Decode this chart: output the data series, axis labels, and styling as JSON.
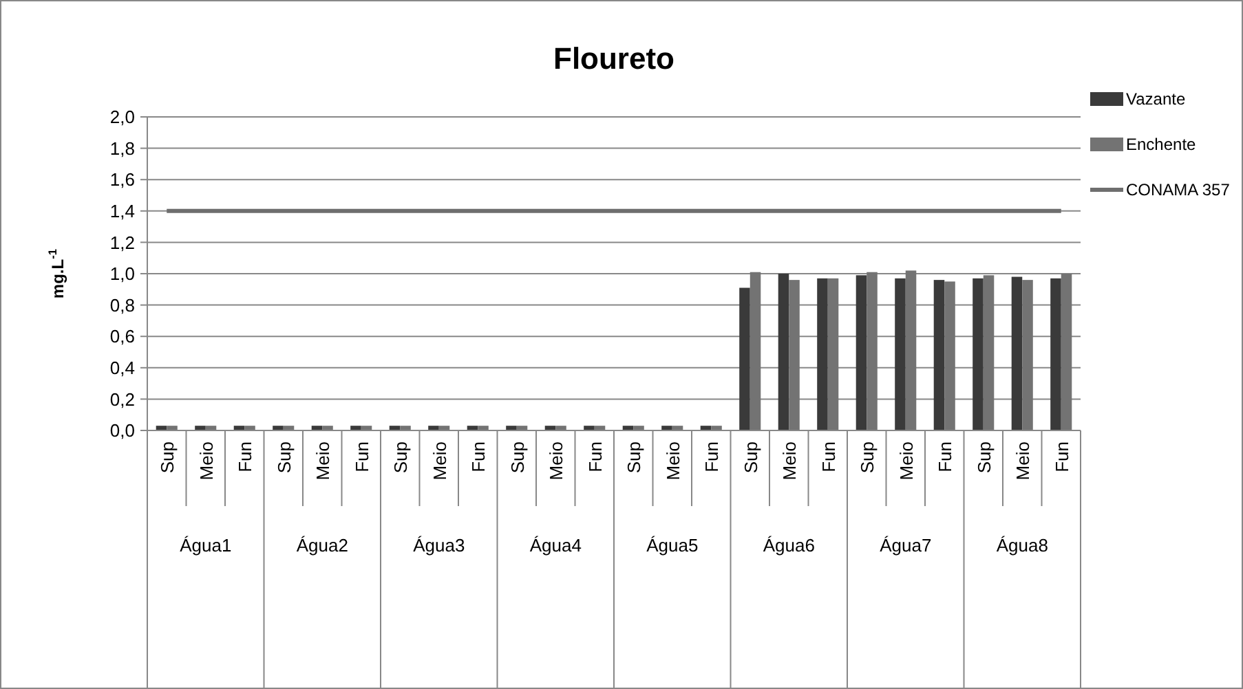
{
  "chart_data": {
    "type": "bar",
    "title": "Floureto",
    "ylabel": "mg.L$^{-1}$",
    "categories": [
      "Sup",
      "Meio",
      "Fun",
      "Sup",
      "Meio",
      "Fun",
      "Sup",
      "Meio",
      "Fun",
      "Sup",
      "Meio",
      "Fun",
      "Sup",
      "Meio",
      "Fun",
      "Sup",
      "Meio",
      "Fun",
      "Sup",
      "Meio",
      "Fun",
      "Sup",
      "Meio",
      "Fun"
    ],
    "annotations": [
      "Água1",
      "Água2",
      "Água3",
      "Água4",
      "Água5",
      "Água6",
      "Água7",
      "Água8"
    ],
    "series": [
      {
        "name": "Vazante",
        "color": "#3a3a3a",
        "values": [
          0.03,
          0.03,
          0.03,
          0.03,
          0.03,
          0.03,
          0.03,
          0.03,
          0.03,
          0.03,
          0.03,
          0.03,
          0.03,
          0.03,
          0.03,
          0.91,
          1.0,
          0.97,
          0.99,
          0.97,
          0.96,
          0.97,
          0.98,
          0.97
        ]
      },
      {
        "name": "Enchente",
        "color": "#737373",
        "values": [
          0.03,
          0.03,
          0.03,
          0.03,
          0.03,
          0.03,
          0.03,
          0.03,
          0.03,
          0.03,
          0.03,
          0.03,
          0.03,
          0.03,
          0.03,
          1.01,
          0.96,
          0.97,
          1.01,
          1.02,
          0.95,
          0.99,
          0.96,
          1.0
        ]
      },
      {
        "name": "CONAMA 357",
        "type": "line",
        "color": "#6e6e6e",
        "values": [
          1.4,
          1.4,
          1.4,
          1.4,
          1.4,
          1.4,
          1.4,
          1.4,
          1.4,
          1.4,
          1.4,
          1.4,
          1.4,
          1.4,
          1.4,
          1.4,
          1.4,
          1.4,
          1.4,
          1.4,
          1.4,
          1.4,
          1.4,
          1.4
        ]
      }
    ],
    "ylim": [
      0,
      2.0
    ],
    "yticks": [
      {
        "value": 0,
        "label": "0,0"
      },
      {
        "value": 0.2,
        "label": "0,2"
      },
      {
        "value": 0.4,
        "label": "0,4"
      },
      {
        "value": 0.6,
        "label": "0,6"
      },
      {
        "value": 0.8,
        "label": "0,8"
      },
      {
        "value": 1.0,
        "label": "1,0"
      },
      {
        "value": 1.2,
        "label": "1,2"
      },
      {
        "value": 1.4,
        "label": "1,4"
      },
      {
        "value": 1.6,
        "label": "1,6"
      },
      {
        "value": 1.8,
        "label": "1,8"
      },
      {
        "value": 2.0,
        "label": "2,0"
      }
    ],
    "grid": "y",
    "legend": "top right",
    "marker": "none",
    "line_style": "solid"
  }
}
